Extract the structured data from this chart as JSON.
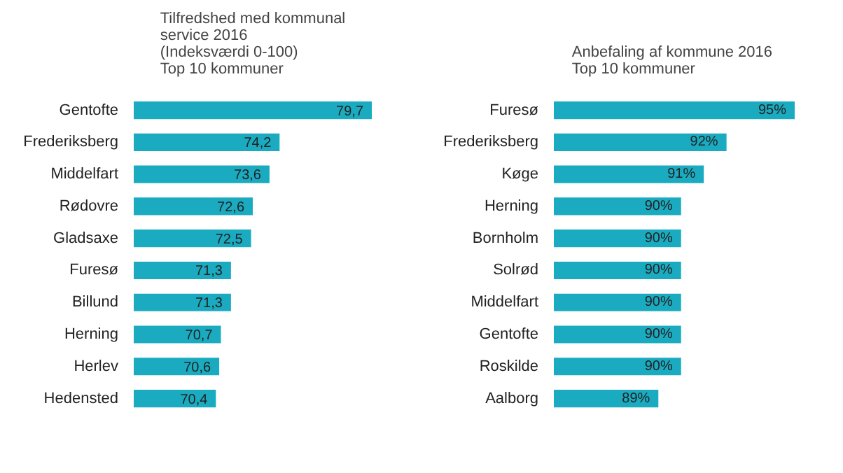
{
  "chart_data": [
    {
      "type": "bar",
      "orientation": "horizontal",
      "title": "Tilfredshed med kommunal\nservice 2016\n(Indeksværdi 0-100)\nTop 10 kommuner",
      "categories": [
        "Gentofte",
        "Frederiksberg",
        "Middelfart",
        "Rødovre",
        "Gladsaxe",
        "Furesø",
        "Billund",
        "Herning",
        "Herlev",
        "Hedensted"
      ],
      "values": [
        79.7,
        74.2,
        73.6,
        72.6,
        72.5,
        71.3,
        71.3,
        70.7,
        70.6,
        70.4
      ],
      "value_labels": [
        "79,7",
        "74,2",
        "73,6",
        "72,6",
        "72,5",
        "71,3",
        "71,3",
        "70,7",
        "70,6",
        "70,4"
      ],
      "color": "#1aabc1",
      "xlim": [
        65.5,
        79.7
      ],
      "tick_labels": "y",
      "grid": false
    },
    {
      "type": "bar",
      "orientation": "horizontal",
      "title": "Anbefaling af kommune  2016\nTop 10 kommuner",
      "categories": [
        "Furesø",
        "Frederiksberg",
        "Køge",
        "Herning",
        "Bornholm",
        "Solrød",
        "Middelfart",
        "Gentofte",
        "Roskilde",
        "Aalborg"
      ],
      "values": [
        95,
        92,
        91,
        90,
        90,
        90,
        90,
        90,
        90,
        89
      ],
      "value_labels": [
        "95%",
        "92%",
        "91%",
        "90%",
        "90%",
        "90%",
        "90%",
        "90%",
        "90%",
        "89%"
      ],
      "color": "#1aabc1",
      "xlim": [
        84.4,
        95
      ],
      "tick_labels": "y",
      "grid": false
    }
  ]
}
